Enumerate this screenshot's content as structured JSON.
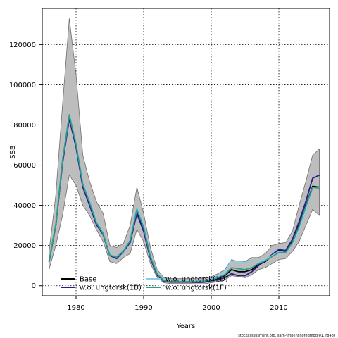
{
  "chart_data": {
    "type": "line",
    "title": "",
    "xlabel": "Years",
    "ylabel": "SSB",
    "xlim": [
      1975,
      2017.5
    ],
    "ylim": [
      -5000,
      138000
    ],
    "xticks": [
      1980,
      1990,
      2000,
      2010
    ],
    "yticks": [
      0,
      20000,
      40000,
      60000,
      80000,
      100000,
      120000
    ],
    "grid": true,
    "legend_position": "bottom-left",
    "credit": "stockassessment.org, sam-tmb-inshoregmod-01, r8487",
    "band": {
      "name": "confidence band",
      "x": [
        1976,
        1977,
        1978,
        1979,
        1980,
        1981,
        1982,
        1983,
        1984,
        1985,
        1986,
        1987,
        1988,
        1989,
        1990,
        1991,
        1992,
        1993,
        1994,
        1995,
        1996,
        1997,
        1998,
        1999,
        2000,
        2001,
        2002,
        2003,
        2004,
        2005,
        2006,
        2007,
        2008,
        2009,
        2010,
        2011,
        2012,
        2013,
        2014,
        2015,
        2016
      ],
      "lower": [
        8000,
        20000,
        35000,
        55000,
        50000,
        40000,
        35000,
        28000,
        22000,
        12000,
        11000,
        14000,
        16000,
        28000,
        22000,
        11000,
        4000,
        1500,
        1000,
        1000,
        1000,
        1000,
        800,
        900,
        1500,
        2000,
        3000,
        5000,
        4500,
        4000,
        5500,
        8000,
        9000,
        11000,
        13000,
        13500,
        17000,
        22000,
        30000,
        38000,
        35000
      ],
      "upper": [
        17000,
        45000,
        90000,
        133000,
        105000,
        65000,
        52000,
        42000,
        36000,
        20000,
        19000,
        21000,
        30000,
        49000,
        36000,
        19000,
        8000,
        4000,
        3500,
        3500,
        3500,
        3500,
        3500,
        4000,
        4500,
        6000,
        8000,
        13000,
        12000,
        12000,
        14000,
        14000,
        16000,
        20000,
        21000,
        21500,
        27000,
        40000,
        52000,
        65000,
        68000
      ]
    },
    "series": [
      {
        "name": "Base",
        "color": "#000000",
        "x": [
          1976,
          1977,
          1978,
          1979,
          1980,
          1981,
          1982,
          1983,
          1984,
          1985,
          1986,
          1987,
          1988,
          1989,
          1990,
          1991,
          1992,
          1993,
          1994,
          1995,
          1996,
          1997,
          1998,
          1999,
          2000,
          2001,
          2002,
          2003,
          2004,
          2005,
          2006,
          2007,
          2008,
          2009,
          2010,
          2011,
          2012,
          2013,
          2014,
          2015,
          2016
        ],
        "values": [
          12000,
          30000,
          62000,
          84000,
          70000,
          50000,
          41000,
          31000,
          26000,
          15000,
          14000,
          17000,
          22000,
          37000,
          28000,
          14000,
          5500,
          2500,
          2000,
          2000,
          2000,
          2000,
          1800,
          2000,
          2800,
          3500,
          5000,
          8000,
          7000,
          7000,
          8000,
          10500,
          12000,
          15000,
          17500,
          17000,
          22000,
          30000,
          40000,
          49500,
          49000
        ]
      },
      {
        "name": "w.o. ungtorsk(1B)",
        "color": "#2b1b8c",
        "x": [
          1976,
          1977,
          1978,
          1979,
          1980,
          1981,
          1982,
          1983,
          1984,
          1985,
          1986,
          1987,
          1988,
          1989,
          1990,
          1991,
          1992,
          1993,
          1994,
          1995,
          1996,
          1997,
          1998,
          1999,
          2000,
          2001,
          2002,
          2003,
          2004,
          2005,
          2006,
          2007,
          2008,
          2009,
          2010,
          2011,
          2012,
          2013,
          2014,
          2015,
          2016
        ],
        "values": [
          12000,
          30000,
          61000,
          83000,
          69000,
          49000,
          40000,
          30500,
          25500,
          15000,
          13500,
          17000,
          21500,
          36000,
          27000,
          13500,
          5200,
          2200,
          1800,
          1800,
          1800,
          1800,
          1600,
          1800,
          2500,
          3000,
          4000,
          6000,
          5000,
          5000,
          7000,
          10000,
          12500,
          15500,
          18000,
          17500,
          23000,
          32000,
          42000,
          53500,
          55000
        ]
      },
      {
        "name": "w.o. ungtorsk(1D)",
        "color": "#87ceeb",
        "x": [
          1976,
          1977,
          1978,
          1979,
          1980,
          1981,
          1982,
          1983,
          1984,
          1985,
          1986,
          1987,
          1988,
          1989,
          1990,
          1991,
          1992,
          1993,
          1994,
          1995,
          1996,
          1997,
          1998,
          1999,
          2000,
          2001,
          2002,
          2003,
          2004,
          2005,
          2006,
          2007,
          2008,
          2009,
          2010,
          2011,
          2012,
          2013,
          2014,
          2015,
          2016
        ],
        "values": [
          12500,
          31000,
          63000,
          85000,
          71000,
          51000,
          42000,
          32000,
          26500,
          15500,
          14500,
          17500,
          23000,
          39000,
          30000,
          15000,
          6000,
          2800,
          2200,
          2200,
          2200,
          2200,
          2200,
          2500,
          3500,
          4800,
          7000,
          12500,
          12000,
          11500,
          12500,
          12000,
          13000,
          15000,
          17000,
          16500,
          21000,
          28000,
          38000,
          49000,
          49000
        ]
      },
      {
        "name": "w.o. ungtorsk(1F)",
        "color": "#2e9e8a",
        "x": [
          1976,
          1977,
          1978,
          1979,
          1980,
          1981,
          1982,
          1983,
          1984,
          1985,
          1986,
          1987,
          1988,
          1989,
          1990,
          1991,
          1992,
          1993,
          1994,
          1995,
          1996,
          1997,
          1998,
          1999,
          2000,
          2001,
          2002,
          2003,
          2004,
          2005,
          2006,
          2007,
          2008,
          2009,
          2010,
          2011,
          2012,
          2013,
          2014,
          2015,
          2016
        ],
        "values": [
          12200,
          30500,
          62500,
          85000,
          70500,
          50500,
          41500,
          31500,
          26000,
          15200,
          14200,
          17200,
          22500,
          38000,
          29000,
          14500,
          5800,
          2600,
          2000,
          2000,
          2000,
          2000,
          1900,
          2200,
          3000,
          4000,
          5500,
          9000,
          8500,
          8000,
          9000,
          11000,
          12500,
          14500,
          16500,
          16500,
          21500,
          29500,
          39500,
          49000,
          48500
        ]
      }
    ]
  }
}
